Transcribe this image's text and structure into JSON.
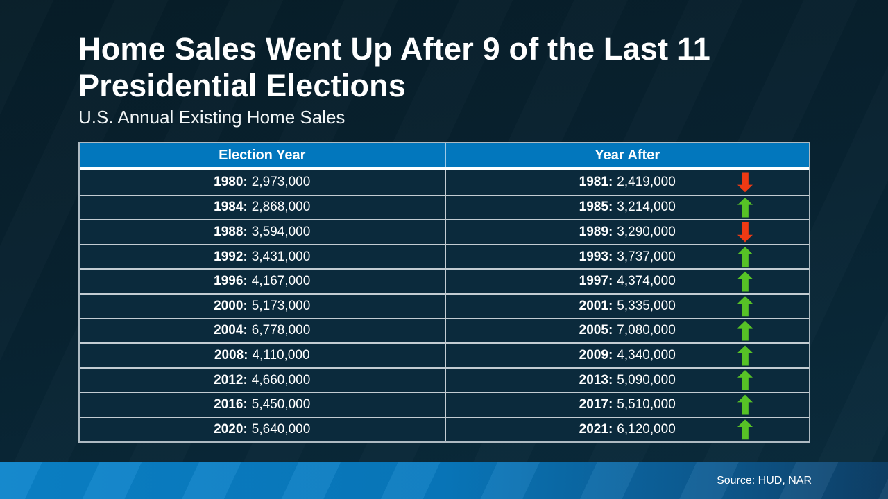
{
  "slide": {
    "title_line1": "Home Sales Went Up After 9 of the Last 11",
    "title_line2": "Presidential Elections",
    "subtitle": "U.S. Annual Existing Home Sales",
    "source": "Source: HUD, NAR"
  },
  "colors": {
    "header_blue": "#0277bd",
    "row_navy": "#0b2a3c",
    "up_green": "#57c226",
    "down_red": "#ee3a14",
    "footer_blue_left": "#0a83ca",
    "footer_blue_right": "#0e3f66",
    "background_dark": "#071d28"
  },
  "chart_data": {
    "type": "table",
    "title": "Home Sales Went Up After 9 of the Last 11 Presidential Elections",
    "subtitle": "U.S. Annual Existing Home Sales",
    "columns": [
      "Election Year",
      "Year After"
    ],
    "rows": [
      {
        "election_year": "1980",
        "election_sales": "2,973,000",
        "next_year": "1981",
        "next_year_sales": "2,419,000",
        "direction": "down"
      },
      {
        "election_year": "1984",
        "election_sales": "2,868,000",
        "next_year": "1985",
        "next_year_sales": "3,214,000",
        "direction": "up"
      },
      {
        "election_year": "1988",
        "election_sales": "3,594,000",
        "next_year": "1989",
        "next_year_sales": "3,290,000",
        "direction": "down"
      },
      {
        "election_year": "1992",
        "election_sales": "3,431,000",
        "next_year": "1993",
        "next_year_sales": "3,737,000",
        "direction": "up"
      },
      {
        "election_year": "1996",
        "election_sales": "4,167,000",
        "next_year": "1997",
        "next_year_sales": "4,374,000",
        "direction": "up"
      },
      {
        "election_year": "2000",
        "election_sales": "5,173,000",
        "next_year": "2001",
        "next_year_sales": "5,335,000",
        "direction": "up"
      },
      {
        "election_year": "2004",
        "election_sales": "6,778,000",
        "next_year": "2005",
        "next_year_sales": "7,080,000",
        "direction": "up"
      },
      {
        "election_year": "2008",
        "election_sales": "4,110,000",
        "next_year": "2009",
        "next_year_sales": "4,340,000",
        "direction": "up"
      },
      {
        "election_year": "2012",
        "election_sales": "4,660,000",
        "next_year": "2013",
        "next_year_sales": "5,090,000",
        "direction": "up"
      },
      {
        "election_year": "2016",
        "election_sales": "5,450,000",
        "next_year": "2017",
        "next_year_sales": "5,510,000",
        "direction": "up"
      },
      {
        "election_year": "2020",
        "election_sales": "5,640,000",
        "next_year": "2021",
        "next_year_sales": "6,120,000",
        "direction": "up"
      }
    ],
    "source": "Source: HUD, NAR"
  }
}
